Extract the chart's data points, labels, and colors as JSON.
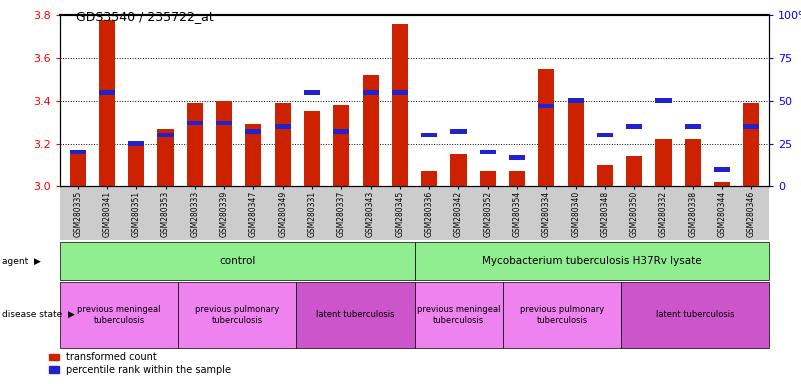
{
  "title": "GDS3540 / 235722_at",
  "samples": [
    "GSM280335",
    "GSM280341",
    "GSM280351",
    "GSM280353",
    "GSM280333",
    "GSM280339",
    "GSM280347",
    "GSM280349",
    "GSM280331",
    "GSM280337",
    "GSM280343",
    "GSM280345",
    "GSM280336",
    "GSM280342",
    "GSM280352",
    "GSM280354",
    "GSM280334",
    "GSM280340",
    "GSM280348",
    "GSM280350",
    "GSM280332",
    "GSM280338",
    "GSM280344",
    "GSM280346"
  ],
  "red_values": [
    3.15,
    3.78,
    3.19,
    3.27,
    3.39,
    3.4,
    3.29,
    3.39,
    3.35,
    3.38,
    3.52,
    3.76,
    3.07,
    3.15,
    3.07,
    3.07,
    3.55,
    3.4,
    3.1,
    3.14,
    3.22,
    3.22,
    3.02,
    3.39
  ],
  "blue_percentiles": [
    20,
    55,
    25,
    30,
    37,
    37,
    32,
    35,
    55,
    32,
    55,
    55,
    30,
    32,
    20,
    17,
    47,
    50,
    30,
    35,
    50,
    35,
    10,
    35
  ],
  "ymin": 3.0,
  "ymax": 3.8,
  "yticks_left": [
    3.0,
    3.2,
    3.4,
    3.6,
    3.8
  ],
  "yticks_right": [
    0,
    25,
    50,
    75,
    100
  ],
  "ytick_labels_right": [
    "0",
    "25",
    "50",
    "75",
    "100%"
  ],
  "agent_spans": [
    {
      "label": "control",
      "start": 0,
      "end": 11
    },
    {
      "label": "Mycobacterium tuberculosis H37Rv lysate",
      "start": 12,
      "end": 23
    }
  ],
  "disease_spans": [
    {
      "label": "previous meningeal\ntuberculosis",
      "start": 0,
      "end": 3,
      "color": "#EE82EE"
    },
    {
      "label": "previous pulmonary\ntuberculosis",
      "start": 4,
      "end": 7,
      "color": "#EE82EE"
    },
    {
      "label": "latent tuberculosis",
      "start": 8,
      "end": 11,
      "color": "#CC55CC"
    },
    {
      "label": "previous meningeal\ntuberculosis",
      "start": 12,
      "end": 14,
      "color": "#EE82EE"
    },
    {
      "label": "previous pulmonary\ntuberculosis",
      "start": 15,
      "end": 18,
      "color": "#EE82EE"
    },
    {
      "label": "latent tuberculosis",
      "start": 19,
      "end": 23,
      "color": "#CC55CC"
    }
  ],
  "bar_color_red": "#CC2200",
  "bar_color_blue": "#2222CC",
  "agent_color": "#90EE90",
  "legend_red": "transformed count",
  "legend_blue": "percentile rank within the sample",
  "bar_width": 0.55,
  "xlabel_bg_color": "#CCCCCC"
}
